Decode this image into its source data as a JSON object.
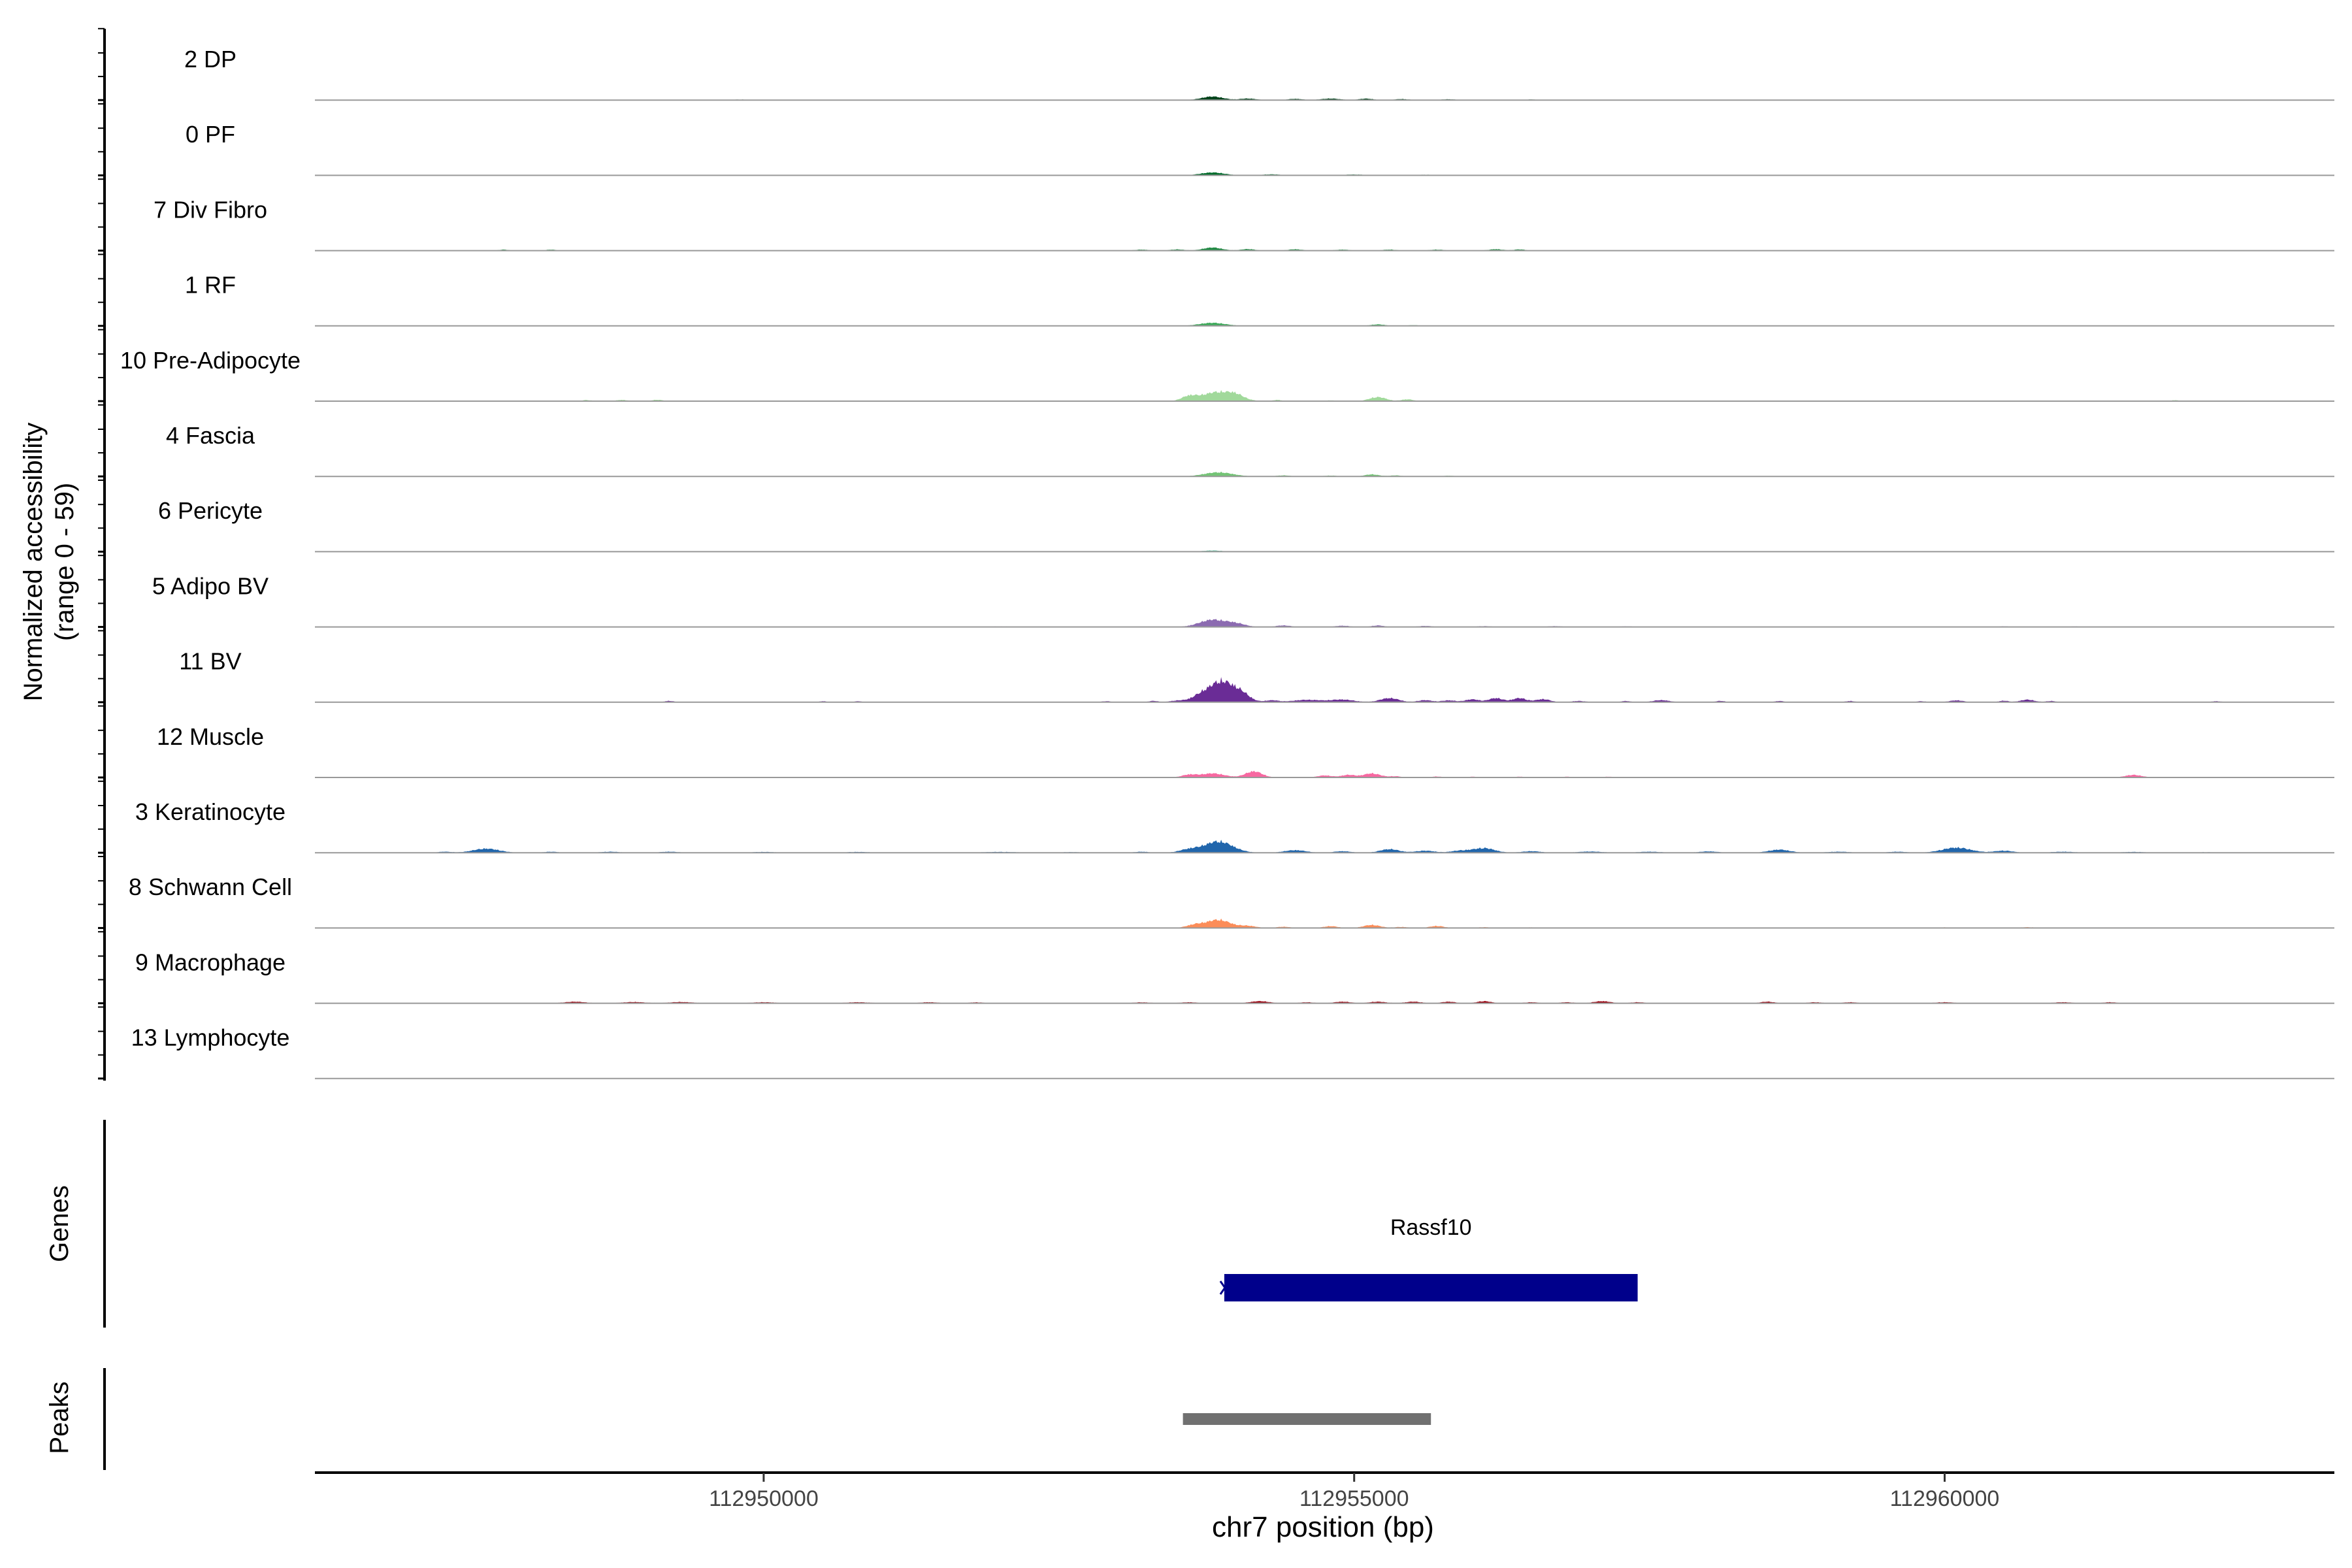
{
  "chart_data": {
    "type": "area",
    "chrom": "chr7",
    "xlabel": "chr7 position (bp)",
    "xlim": [
      112946200,
      112963300
    ],
    "xticks": [
      112950000,
      112955000,
      112960000
    ],
    "xtick_labels": [
      "112950000",
      "112955000",
      "112960000"
    ],
    "ylabel": "Normalized accessibility",
    "ylabel2": "(range 0 - 59)",
    "ylim": [
      0,
      59
    ],
    "grid": false,
    "tracks": [
      {
        "name": "2 DP",
        "color": "#00441b",
        "peaks": [
          [
            112953800,
            3.5,
            90
          ],
          [
            112954100,
            1.5,
            70
          ],
          [
            112954500,
            1.2,
            60
          ],
          [
            112954800,
            1.5,
            80
          ],
          [
            112955100,
            1.4,
            60
          ],
          [
            112955400,
            1.0,
            60
          ],
          [
            112955800,
            0.8,
            60
          ],
          [
            112956500,
            0.6,
            40
          ],
          [
            112949800,
            0.5,
            70
          ],
          [
            112961200,
            0.5,
            20
          ],
          [
            112962300,
            0.4,
            15
          ]
        ]
      },
      {
        "name": "0 PF",
        "color": "#006d2c",
        "peaks": [
          [
            112953800,
            2.8,
            100
          ],
          [
            112954300,
            1.0,
            80
          ],
          [
            112955000,
            0.8,
            100
          ],
          [
            112955600,
            0.6,
            80
          ],
          [
            112952500,
            0.4,
            150
          ],
          [
            112950300,
            0.5,
            90
          ],
          [
            112949000,
            0.4,
            150
          ],
          [
            112957000,
            0.4,
            200
          ],
          [
            112958000,
            0.4,
            200
          ],
          [
            112959000,
            0.4,
            150
          ],
          [
            112960000,
            0.4,
            150
          ],
          [
            112961000,
            0.3,
            150
          ],
          [
            112947500,
            0.3,
            80
          ]
        ]
      },
      {
        "name": "7 Div Fibro",
        "color": "#238b45",
        "peaks": [
          [
            112953800,
            3.0,
            80
          ],
          [
            112954100,
            1.5,
            60
          ],
          [
            112954500,
            1.3,
            60
          ],
          [
            112954900,
            1.0,
            60
          ],
          [
            112955300,
            1.0,
            60
          ],
          [
            112955700,
            1.0,
            60
          ],
          [
            112956200,
            1.4,
            60
          ],
          [
            112956400,
            1.2,
            50
          ],
          [
            112947800,
            1.0,
            40
          ],
          [
            112948200,
            1.0,
            40
          ],
          [
            112953200,
            1.0,
            60
          ],
          [
            112953500,
            1.2,
            60
          ]
        ]
      },
      {
        "name": "1 RF",
        "color": "#41ab5d",
        "peaks": [
          [
            112953800,
            3.0,
            110
          ],
          [
            112955200,
            1.5,
            60
          ],
          [
            112955500,
            0.7,
            60
          ],
          [
            112952000,
            0.4,
            150
          ],
          [
            112950000,
            0.4,
            100
          ],
          [
            112948600,
            0.3,
            100
          ],
          [
            112957000,
            0.3,
            150
          ],
          [
            112959000,
            0.3,
            150
          ],
          [
            112962300,
            0.3,
            20
          ]
        ]
      },
      {
        "name": "10 Pre-Adipocyte",
        "color": "#a1d99b",
        "peaks": [
          [
            112953850,
            9.0,
            140
          ],
          [
            112953600,
            4.0,
            60
          ],
          [
            112954000,
            3.0,
            60
          ],
          [
            112954350,
            1.2,
            40
          ],
          [
            112954800,
            0.8,
            40
          ],
          [
            112955200,
            4.0,
            70
          ],
          [
            112955450,
            1.8,
            50
          ],
          [
            112948500,
            1.1,
            40
          ],
          [
            112948800,
            1.2,
            50
          ],
          [
            112949100,
            1.3,
            50
          ],
          [
            112947100,
            0.5,
            30
          ],
          [
            112949800,
            0.6,
            30
          ],
          [
            112950300,
            0.5,
            30
          ],
          [
            112961950,
            1.0,
            30
          ]
        ]
      },
      {
        "name": "4 Fascia",
        "color": "#74c476",
        "peaks": [
          [
            112953850,
            4.0,
            120
          ],
          [
            112954400,
            1.0,
            60
          ],
          [
            112954800,
            0.8,
            60
          ],
          [
            112955150,
            2.0,
            60
          ],
          [
            112955350,
            1.0,
            50
          ],
          [
            112955800,
            0.7,
            50
          ],
          [
            112948600,
            0.3,
            100
          ],
          [
            112950500,
            0.3,
            100
          ],
          [
            112957500,
            0.3,
            150
          ]
        ]
      },
      {
        "name": "6 Pericyte",
        "color": "#66c2a4",
        "peaks": [
          [
            112953800,
            1.2,
            80
          ],
          [
            112947400,
            0.5,
            50
          ],
          [
            112949300,
            0.5,
            40
          ],
          [
            112948400,
            0.3,
            100
          ],
          [
            112956000,
            0.3,
            120
          ],
          [
            112958000,
            0.3,
            100
          ]
        ]
      },
      {
        "name": "5 Adipo BV",
        "color": "#8c6bb1",
        "peaks": [
          [
            112953800,
            7.0,
            110
          ],
          [
            112954000,
            3.0,
            80
          ],
          [
            112954400,
            1.5,
            60
          ],
          [
            112954900,
            1.2,
            60
          ],
          [
            112955200,
            1.5,
            50
          ],
          [
            112955600,
            1.0,
            60
          ],
          [
            112956100,
            0.8,
            60
          ],
          [
            112956700,
            0.8,
            60
          ],
          [
            112957300,
            0.6,
            60
          ],
          [
            112960500,
            0.6,
            40
          ],
          [
            112961100,
            0.5,
            40
          ],
          [
            112952000,
            0.4,
            150
          ],
          [
            112949800,
            0.3,
            100
          ]
        ]
      },
      {
        "name": "11 BV",
        "color": "#6a2c96",
        "peaks": [
          [
            112953880,
            20.0,
            100
          ],
          [
            112953700,
            6.0,
            80
          ],
          [
            112954050,
            7.0,
            70
          ],
          [
            112953500,
            1.5,
            60
          ],
          [
            112954300,
            1.8,
            60
          ],
          [
            112954600,
            2.3,
            120
          ],
          [
            112954900,
            2.5,
            100
          ],
          [
            112955300,
            4.0,
            80
          ],
          [
            112955600,
            2.0,
            60
          ],
          [
            112955800,
            1.8,
            60
          ],
          [
            112956000,
            2.8,
            60
          ],
          [
            112956200,
            4.0,
            60
          ],
          [
            112956400,
            4.0,
            60
          ],
          [
            112956600,
            3.0,
            60
          ],
          [
            112956900,
            1.2,
            60
          ],
          [
            112957300,
            1.2,
            40
          ],
          [
            112957600,
            2.0,
            70
          ],
          [
            112958100,
            1.3,
            40
          ],
          [
            112958600,
            1.2,
            40
          ],
          [
            112959200,
            1.2,
            40
          ],
          [
            112959800,
            1.0,
            40
          ],
          [
            112960100,
            1.8,
            60
          ],
          [
            112960500,
            1.5,
            40
          ],
          [
            112960700,
            2.5,
            60
          ],
          [
            112960900,
            1.2,
            40
          ],
          [
            112962300,
            1.0,
            40
          ],
          [
            112949200,
            1.3,
            40
          ],
          [
            112950500,
            1.0,
            30
          ],
          [
            112950800,
            1.0,
            30
          ],
          [
            112952900,
            1.0,
            40
          ],
          [
            112953300,
            1.3,
            40
          ]
        ]
      },
      {
        "name": "12 Muscle",
        "color": "#f768a1",
        "peaks": [
          [
            112954150,
            6.0,
            70
          ],
          [
            112953800,
            4.0,
            100
          ],
          [
            112953600,
            2.5,
            60
          ],
          [
            112954750,
            2.0,
            60
          ],
          [
            112954950,
            2.5,
            60
          ],
          [
            112955150,
            4.0,
            70
          ],
          [
            112955350,
            1.2,
            50
          ],
          [
            112955700,
            1.0,
            40
          ],
          [
            112956000,
            0.8,
            40
          ],
          [
            112956400,
            0.8,
            40
          ],
          [
            112956800,
            0.8,
            40
          ],
          [
            112957150,
            0.8,
            40
          ],
          [
            112961600,
            2.5,
            70
          ]
        ]
      },
      {
        "name": "3 Keratinocyte",
        "color": "#2166ac",
        "peaks": [
          [
            112953850,
            11.0,
            120
          ],
          [
            112953600,
            3.0,
            80
          ],
          [
            112947650,
            4.0,
            110
          ],
          [
            112947300,
            1.0,
            60
          ],
          [
            112948200,
            1.0,
            60
          ],
          [
            112948700,
            1.0,
            80
          ],
          [
            112949200,
            1.0,
            80
          ],
          [
            112950000,
            0.8,
            100
          ],
          [
            112950800,
            0.8,
            100
          ],
          [
            112952000,
            0.8,
            150
          ],
          [
            112952600,
            0.6,
            100
          ],
          [
            112953200,
            1.0,
            60
          ],
          [
            112954500,
            2.5,
            90
          ],
          [
            112954900,
            1.5,
            70
          ],
          [
            112955300,
            3.5,
            80
          ],
          [
            112955600,
            2.0,
            80
          ],
          [
            112955900,
            2.0,
            80
          ],
          [
            112956100,
            4.5,
            90
          ],
          [
            112956500,
            1.5,
            80
          ],
          [
            112957000,
            1.2,
            100
          ],
          [
            112957500,
            1.0,
            100
          ],
          [
            112958000,
            1.3,
            80
          ],
          [
            112958600,
            3.0,
            90
          ],
          [
            112959100,
            1.0,
            100
          ],
          [
            112959600,
            1.0,
            80
          ],
          [
            112960100,
            5.0,
            120
          ],
          [
            112960500,
            2.0,
            80
          ],
          [
            112961000,
            1.0,
            100
          ],
          [
            112961600,
            0.8,
            100
          ],
          [
            112962200,
            0.5,
            100
          ]
        ]
      },
      {
        "name": "8 Schwann Cell",
        "color": "#fc8d59",
        "peaks": [
          [
            112953850,
            8.0,
            100
          ],
          [
            112953650,
            3.0,
            70
          ],
          [
            112954100,
            2.0,
            70
          ],
          [
            112954400,
            1.2,
            60
          ],
          [
            112954800,
            1.8,
            60
          ],
          [
            112955150,
            3.0,
            70
          ],
          [
            112955400,
            1.0,
            60
          ],
          [
            112955700,
            2.0,
            60
          ],
          [
            112956100,
            0.8,
            60
          ],
          [
            112956500,
            0.6,
            60
          ],
          [
            112948000,
            0.5,
            80
          ],
          [
            112948500,
            0.5,
            80
          ],
          [
            112949000,
            0.5,
            80
          ],
          [
            112952300,
            0.4,
            100
          ],
          [
            112957000,
            0.4,
            100
          ],
          [
            112958800,
            0.5,
            60
          ],
          [
            112960000,
            0.6,
            60
          ],
          [
            112960700,
            0.8,
            60
          ],
          [
            112961300,
            0.5,
            60
          ]
        ]
      },
      {
        "name": "9 Macrophage",
        "color": "#99000d",
        "peaks": [
          [
            112948400,
            1.5,
            90
          ],
          [
            112948900,
            1.2,
            100
          ],
          [
            112949300,
            1.2,
            100
          ],
          [
            112950000,
            1.0,
            100
          ],
          [
            112950800,
            1.0,
            100
          ],
          [
            112951400,
            1.0,
            80
          ],
          [
            112951800,
            0.9,
            60
          ],
          [
            112953200,
            0.9,
            80
          ],
          [
            112953600,
            1.0,
            70
          ],
          [
            112954200,
            2.0,
            80
          ],
          [
            112954600,
            1.0,
            60
          ],
          [
            112954900,
            1.5,
            70
          ],
          [
            112955200,
            1.5,
            70
          ],
          [
            112955500,
            1.5,
            70
          ],
          [
            112955800,
            1.5,
            60
          ],
          [
            112956100,
            2.0,
            60
          ],
          [
            112956500,
            1.0,
            60
          ],
          [
            112956800,
            1.0,
            60
          ],
          [
            112957100,
            2.0,
            70
          ],
          [
            112957400,
            1.0,
            60
          ],
          [
            112958500,
            1.5,
            60
          ],
          [
            112958900,
            1.0,
            60
          ],
          [
            112959200,
            1.0,
            60
          ],
          [
            112960000,
            1.0,
            80
          ],
          [
            112961000,
            1.0,
            80
          ],
          [
            112961400,
            1.0,
            60
          ]
        ]
      },
      {
        "name": "13 Lymphocyte",
        "color": "#444444",
        "peaks": []
      }
    ],
    "genes_label": "Genes",
    "genes": [
      {
        "name": "Rassf10",
        "start": 112953900,
        "end": 112957400,
        "color": "#00008b"
      }
    ],
    "peaks_label": "Peaks",
    "peak_regions": [
      {
        "start": 112953550,
        "end": 112955650,
        "color": "#707070"
      }
    ]
  }
}
